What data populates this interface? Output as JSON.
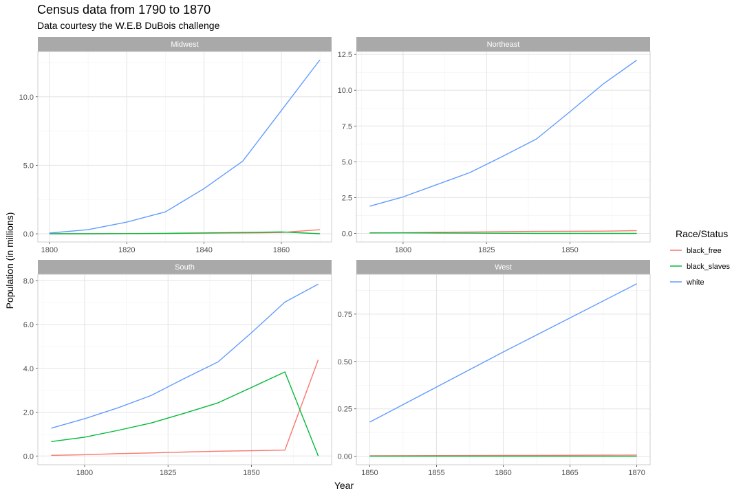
{
  "chart_data": {
    "type": "line",
    "title": "Census data from 1790 to 1870",
    "subtitle": "Data courtesy the W.E.B DuBois challenge",
    "xlabel": "Year",
    "ylabel": "Population (in millions)",
    "legend": {
      "title": "Race/Status",
      "placement": "right",
      "entries": [
        {
          "name": "black_free",
          "color": "#F8766D"
        },
        {
          "name": "black_slaves",
          "color": "#00BA38"
        },
        {
          "name": "white",
          "color": "#619CFF"
        }
      ]
    },
    "grid": true,
    "panels": [
      {
        "name": "Midwest",
        "xlim": [
          1797,
          1873
        ],
        "ylim": [
          -0.6,
          13.3
        ],
        "xticks": [
          1800,
          1820,
          1840,
          1860
        ],
        "xtick_labels": [
          "1800",
          "1820",
          "1840",
          "1860"
        ],
        "yticks": [
          0,
          5,
          10
        ],
        "ytick_labels": [
          "0.0",
          "5.0",
          "10.0"
        ],
        "series": [
          {
            "name": "black_free",
            "x": [
              1800,
              1810,
              1820,
              1830,
              1840,
              1850,
              1860,
              1870
            ],
            "values": [
              0.0,
              0.0,
              0.01,
              0.02,
              0.04,
              0.06,
              0.09,
              0.3
            ]
          },
          {
            "name": "black_slaves",
            "x": [
              1800,
              1810,
              1820,
              1830,
              1840,
              1850,
              1860,
              1870
            ],
            "values": [
              0.0,
              0.0,
              0.01,
              0.03,
              0.06,
              0.1,
              0.14,
              0.0
            ]
          },
          {
            "name": "white",
            "x": [
              1800,
              1810,
              1820,
              1830,
              1840,
              1850,
              1860,
              1870
            ],
            "values": [
              0.05,
              0.3,
              0.85,
              1.6,
              3.3,
              5.3,
              9.0,
              12.7
            ]
          }
        ]
      },
      {
        "name": "Northeast",
        "xlim": [
          1786,
          1874
        ],
        "ylim": [
          -0.6,
          12.7
        ],
        "xticks": [
          1800,
          1825,
          1850
        ],
        "xtick_labels": [
          "1800",
          "1825",
          "1850"
        ],
        "yticks": [
          0,
          2.5,
          5,
          7.5,
          10,
          12.5
        ],
        "ytick_labels": [
          "0.0",
          "2.5",
          "5.0",
          "7.5",
          "10.0",
          "12.5"
        ],
        "series": [
          {
            "name": "black_free",
            "x": [
              1790,
              1800,
              1810,
              1820,
              1830,
              1840,
              1850,
              1860,
              1870
            ],
            "values": [
              0.03,
              0.05,
              0.08,
              0.1,
              0.12,
              0.14,
              0.15,
              0.16,
              0.19
            ]
          },
          {
            "name": "black_slaves",
            "x": [
              1790,
              1800,
              1810,
              1820,
              1830,
              1840,
              1850,
              1860,
              1870
            ],
            "values": [
              0.04,
              0.04,
              0.03,
              0.02,
              0.01,
              0.0,
              0.0,
              0.0,
              0.0
            ]
          },
          {
            "name": "white",
            "x": [
              1790,
              1800,
              1810,
              1820,
              1830,
              1840,
              1850,
              1860,
              1870
            ],
            "values": [
              1.9,
              2.55,
              3.4,
              4.25,
              5.4,
              6.6,
              8.5,
              10.45,
              12.1
            ]
          }
        ]
      },
      {
        "name": "South",
        "xlim": [
          1786,
          1874
        ],
        "ylim": [
          -0.4,
          8.3
        ],
        "xticks": [
          1800,
          1825,
          1850
        ],
        "xtick_labels": [
          "1800",
          "1825",
          "1850"
        ],
        "yticks": [
          0,
          2,
          4,
          6,
          8
        ],
        "ytick_labels": [
          "0.0",
          "2.0",
          "4.0",
          "6.0",
          "8.0"
        ],
        "series": [
          {
            "name": "black_free",
            "x": [
              1790,
              1800,
              1810,
              1820,
              1830,
              1840,
              1850,
              1860,
              1870
            ],
            "values": [
              0.03,
              0.06,
              0.11,
              0.14,
              0.18,
              0.22,
              0.24,
              0.27,
              4.4
            ]
          },
          {
            "name": "black_slaves",
            "x": [
              1790,
              1800,
              1810,
              1820,
              1830,
              1840,
              1850,
              1860,
              1870
            ],
            "values": [
              0.66,
              0.86,
              1.17,
              1.51,
              1.96,
              2.43,
              3.13,
              3.84,
              0.0
            ]
          },
          {
            "name": "white",
            "x": [
              1790,
              1800,
              1810,
              1820,
              1830,
              1840,
              1850,
              1860,
              1870
            ],
            "values": [
              1.27,
              1.7,
              2.2,
              2.77,
              3.55,
              4.3,
              5.63,
              7.03,
              7.85
            ]
          }
        ]
      },
      {
        "name": "West",
        "xlim": [
          1849,
          1871
        ],
        "ylim": [
          -0.045,
          0.96
        ],
        "xticks": [
          1850,
          1855,
          1860,
          1865,
          1870
        ],
        "xtick_labels": [
          "1850",
          "1855",
          "1860",
          "1865",
          "1870"
        ],
        "yticks": [
          0,
          0.25,
          0.5,
          0.75
        ],
        "ytick_labels": [
          "0.00",
          "0.25",
          "0.50",
          "0.75"
        ],
        "series": [
          {
            "name": "black_free",
            "x": [
              1850,
              1860,
              1870
            ],
            "values": [
              0.002,
              0.004,
              0.006
            ]
          },
          {
            "name": "black_slaves",
            "x": [
              1850,
              1860,
              1870
            ],
            "values": [
              0.0,
              0.0,
              0.0
            ]
          },
          {
            "name": "white",
            "x": [
              1850,
              1860,
              1870
            ],
            "values": [
              0.18,
              0.55,
              0.91
            ]
          }
        ]
      }
    ]
  }
}
